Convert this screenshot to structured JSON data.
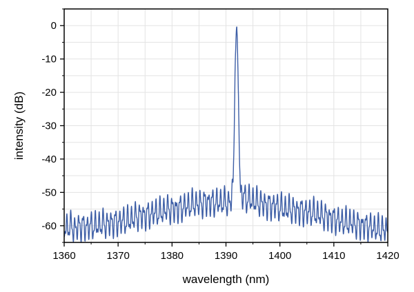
{
  "chart_data": {
    "type": "line",
    "title": "",
    "xlabel": "wavelength (nm)",
    "ylabel": "intensity (dB)",
    "xlim": [
      1360,
      1420
    ],
    "ylim": [
      -65,
      5
    ],
    "x_ticks": [
      1360,
      1370,
      1380,
      1390,
      1400,
      1410,
      1420
    ],
    "y_ticks": [
      0,
      -10,
      -20,
      -30,
      -40,
      -50,
      -60
    ],
    "x_tick_labels": [
      "1360",
      "1370",
      "1380",
      "1390",
      "1400",
      "1410",
      "1420"
    ],
    "y_tick_labels": [
      "0",
      "-10",
      "-20",
      "-30",
      "-40",
      "-50",
      "-60"
    ],
    "grid": true,
    "line_color": "#3d5ea6",
    "series": [
      {
        "x": [
          1360.0,
          1361.0,
          1362.0,
          1363.0,
          1364.0,
          1365.0,
          1366.0,
          1367.0,
          1368.0,
          1369.0,
          1370.0,
          1371.0,
          1372.0,
          1373.0,
          1374.0,
          1375.0,
          1376.0,
          1377.0,
          1378.0,
          1379.0,
          1380.0,
          1381.0,
          1382.0,
          1383.0,
          1384.0,
          1385.0,
          1386.0,
          1387.0,
          1388.0,
          1389.0,
          1390.0,
          1390.5,
          1391.0,
          1391.3,
          1391.5,
          1391.7,
          1391.9,
          1392.0,
          1392.1,
          1392.3,
          1392.5,
          1392.7,
          1393.0,
          1394.0,
          1395.0,
          1396.0,
          1397.0,
          1398.0,
          1399.0,
          1400.0,
          1401.0,
          1402.0,
          1403.0,
          1404.0,
          1405.0,
          1406.0,
          1407.0,
          1408.0,
          1409.0,
          1410.0,
          1411.0,
          1412.0,
          1413.0,
          1414.0,
          1415.0,
          1416.0,
          1417.0,
          1418.0,
          1419.0,
          1420.0
        ],
        "y": [
          -61,
          -60,
          -61,
          -60,
          -60.5,
          -60,
          -60,
          -59.5,
          -59.5,
          -59,
          -59,
          -58.5,
          -58.5,
          -57.5,
          -57,
          -57,
          -56.5,
          -56,
          -56,
          -55,
          -55,
          -55,
          -54.5,
          -54,
          -53.5,
          -53.5,
          -53,
          -53,
          -53,
          -53,
          -53,
          -53.5,
          -52,
          -48,
          -35,
          -12,
          -2,
          0,
          -4,
          -20,
          -40,
          -50,
          -51,
          -52,
          -52.5,
          -53,
          -53.5,
          -54,
          -54,
          -54.5,
          -55,
          -55,
          -55.5,
          -55.5,
          -56,
          -56,
          -56.5,
          -57,
          -57.5,
          -58,
          -58.5,
          -59,
          -59,
          -59.5,
          -60,
          -60,
          -60.5,
          -61,
          -61,
          -61.5
        ],
        "ripple_amplitude_db": 6,
        "ripple_period_nm": 0.75
      }
    ]
  }
}
